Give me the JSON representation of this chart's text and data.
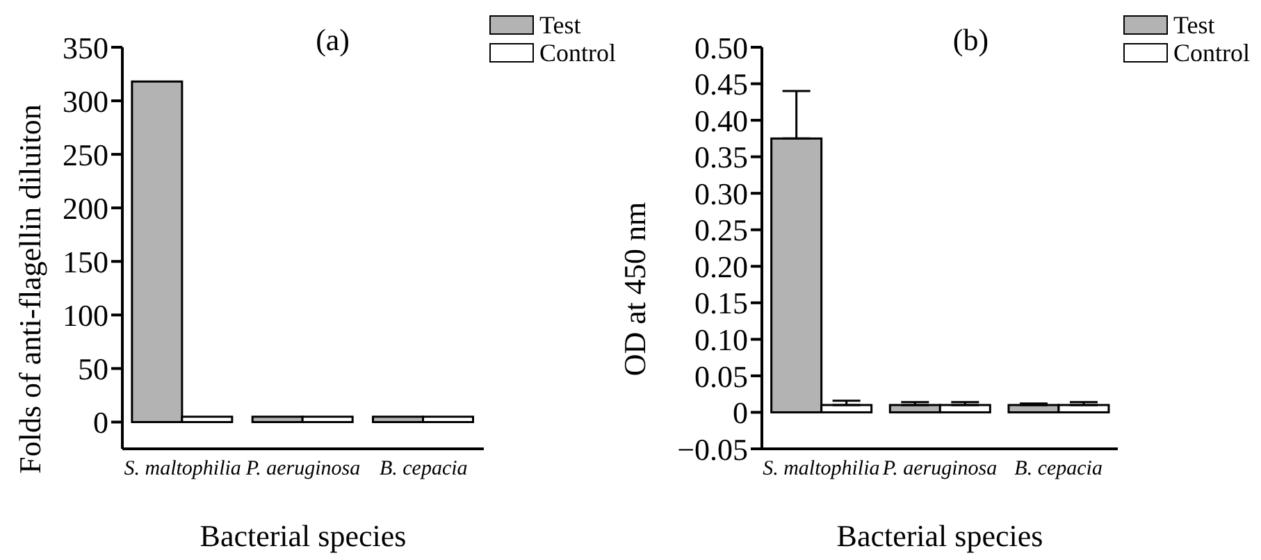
{
  "chart_data": [
    {
      "type": "bar",
      "title": "(a)",
      "xlabel": "Bacterial species",
      "ylabel": "Folds of anti-flagellin diluiton",
      "categories": [
        "S. maltophilia",
        "P. aeruginosa",
        "B. cepacia"
      ],
      "series": [
        {
          "name": "Test",
          "color": "#b3b3b3",
          "values": [
            318,
            5,
            5
          ]
        },
        {
          "name": "Control",
          "color": "#ffffff",
          "values": [
            5,
            5,
            5
          ]
        }
      ],
      "ylim": [
        -25,
        350
      ],
      "yticks": [
        0,
        50,
        100,
        150,
        200,
        250,
        300,
        350
      ],
      "grid": false,
      "legend": "top right"
    },
    {
      "type": "bar",
      "title": "(b)",
      "xlabel": "Bacterial species",
      "ylabel": "OD at 450 nm",
      "categories": [
        "S. maltophilia",
        "P. aeruginosa",
        "B. cepacia"
      ],
      "series": [
        {
          "name": "Test",
          "color": "#b3b3b3",
          "values": [
            0.375,
            0.01,
            0.01
          ],
          "errors": [
            [
              0.375,
              0.44
            ],
            [
              0.01,
              0.014
            ],
            [
              0.01,
              0.012
            ]
          ]
        },
        {
          "name": "Control",
          "color": "#ffffff",
          "values": [
            0.01,
            0.01,
            0.01
          ],
          "errors": [
            [
              0.01,
              0.016
            ],
            [
              0.01,
              0.014
            ],
            [
              0.01,
              0.014
            ]
          ]
        }
      ],
      "ylim": [
        -0.05,
        0.5
      ],
      "yticks": [
        {
          "value": -0.05,
          "label": "−0.05"
        },
        0,
        0.05,
        {
          "value": 0.1,
          "label": "0.10"
        },
        0.15,
        {
          "value": 0.2,
          "label": "0.20"
        },
        0.25,
        {
          "value": 0.3,
          "label": "0.30"
        },
        0.35,
        {
          "value": 0.4,
          "label": "0.40"
        },
        0.45,
        {
          "value": 0.5,
          "label": "0.50"
        }
      ],
      "grid": false,
      "legend": "top right"
    }
  ]
}
